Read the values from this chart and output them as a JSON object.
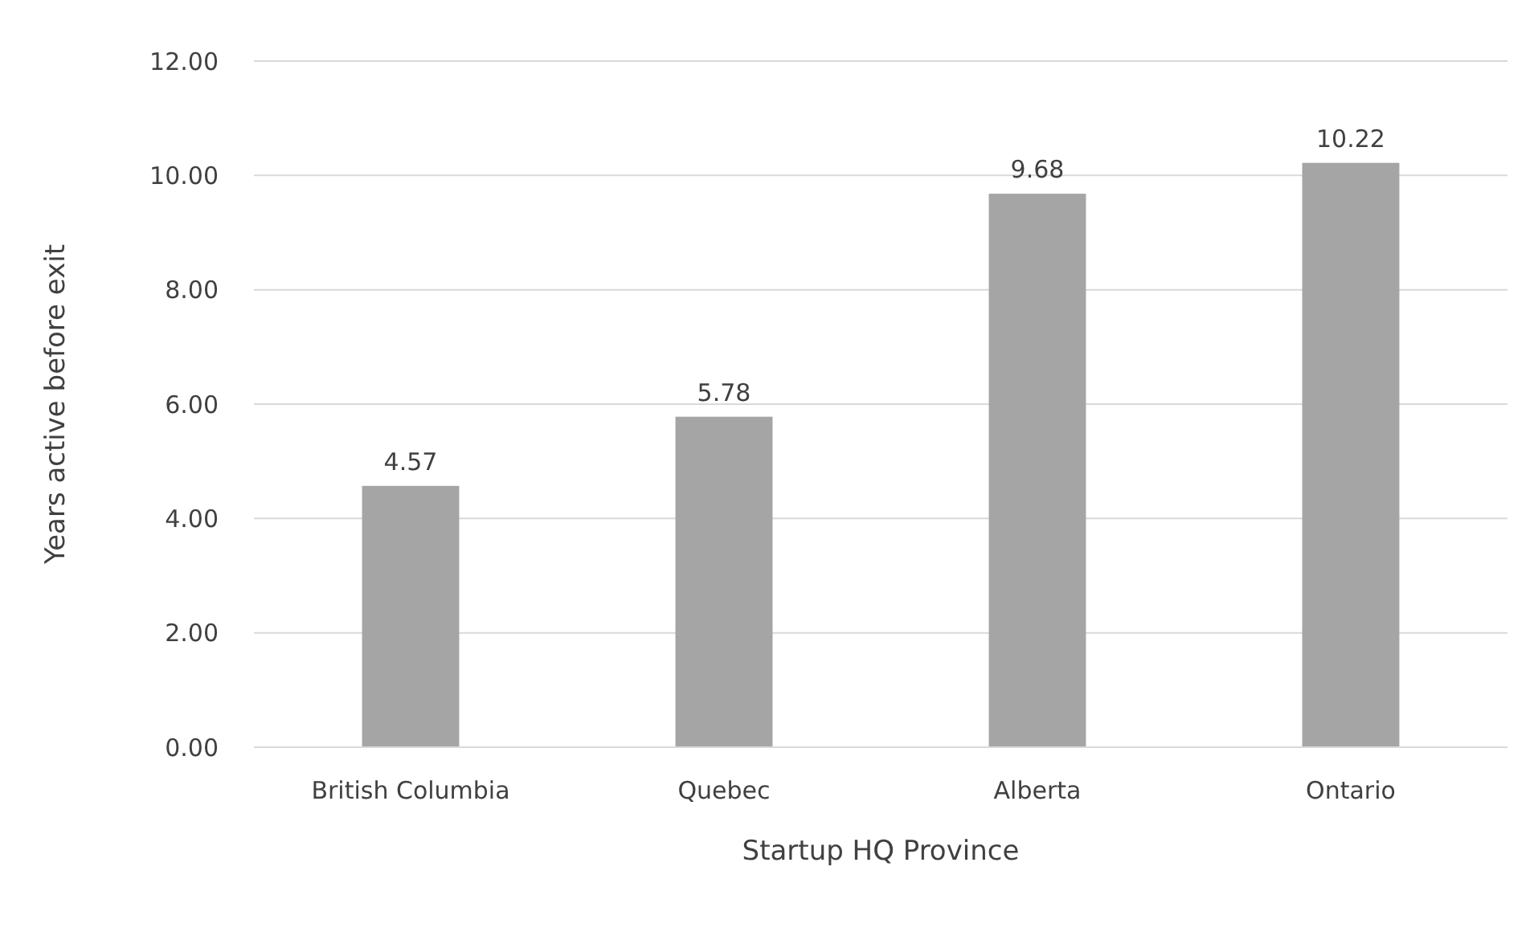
{
  "chart_data": {
    "type": "bar",
    "xlabel": "Startup HQ Province",
    "ylabel": "Years active before exit",
    "categories": [
      "British Columbia",
      "Quebec",
      "Alberta",
      "Ontario"
    ],
    "values": [
      4.57,
      5.78,
      9.68,
      10.22
    ],
    "color": "#a5a5a5",
    "data_labels": true,
    "grid": "y",
    "ylim": [
      0,
      12
    ],
    "yticks": [
      {
        "value": 0,
        "label": "0.00"
      },
      {
        "value": 2,
        "label": "2.00"
      },
      {
        "value": 4,
        "label": "4.00"
      },
      {
        "value": 6,
        "label": "6.00"
      },
      {
        "value": 8,
        "label": "8.00"
      },
      {
        "value": 10,
        "label": "10.00"
      },
      {
        "value": 12,
        "label": "12.00"
      }
    ]
  }
}
